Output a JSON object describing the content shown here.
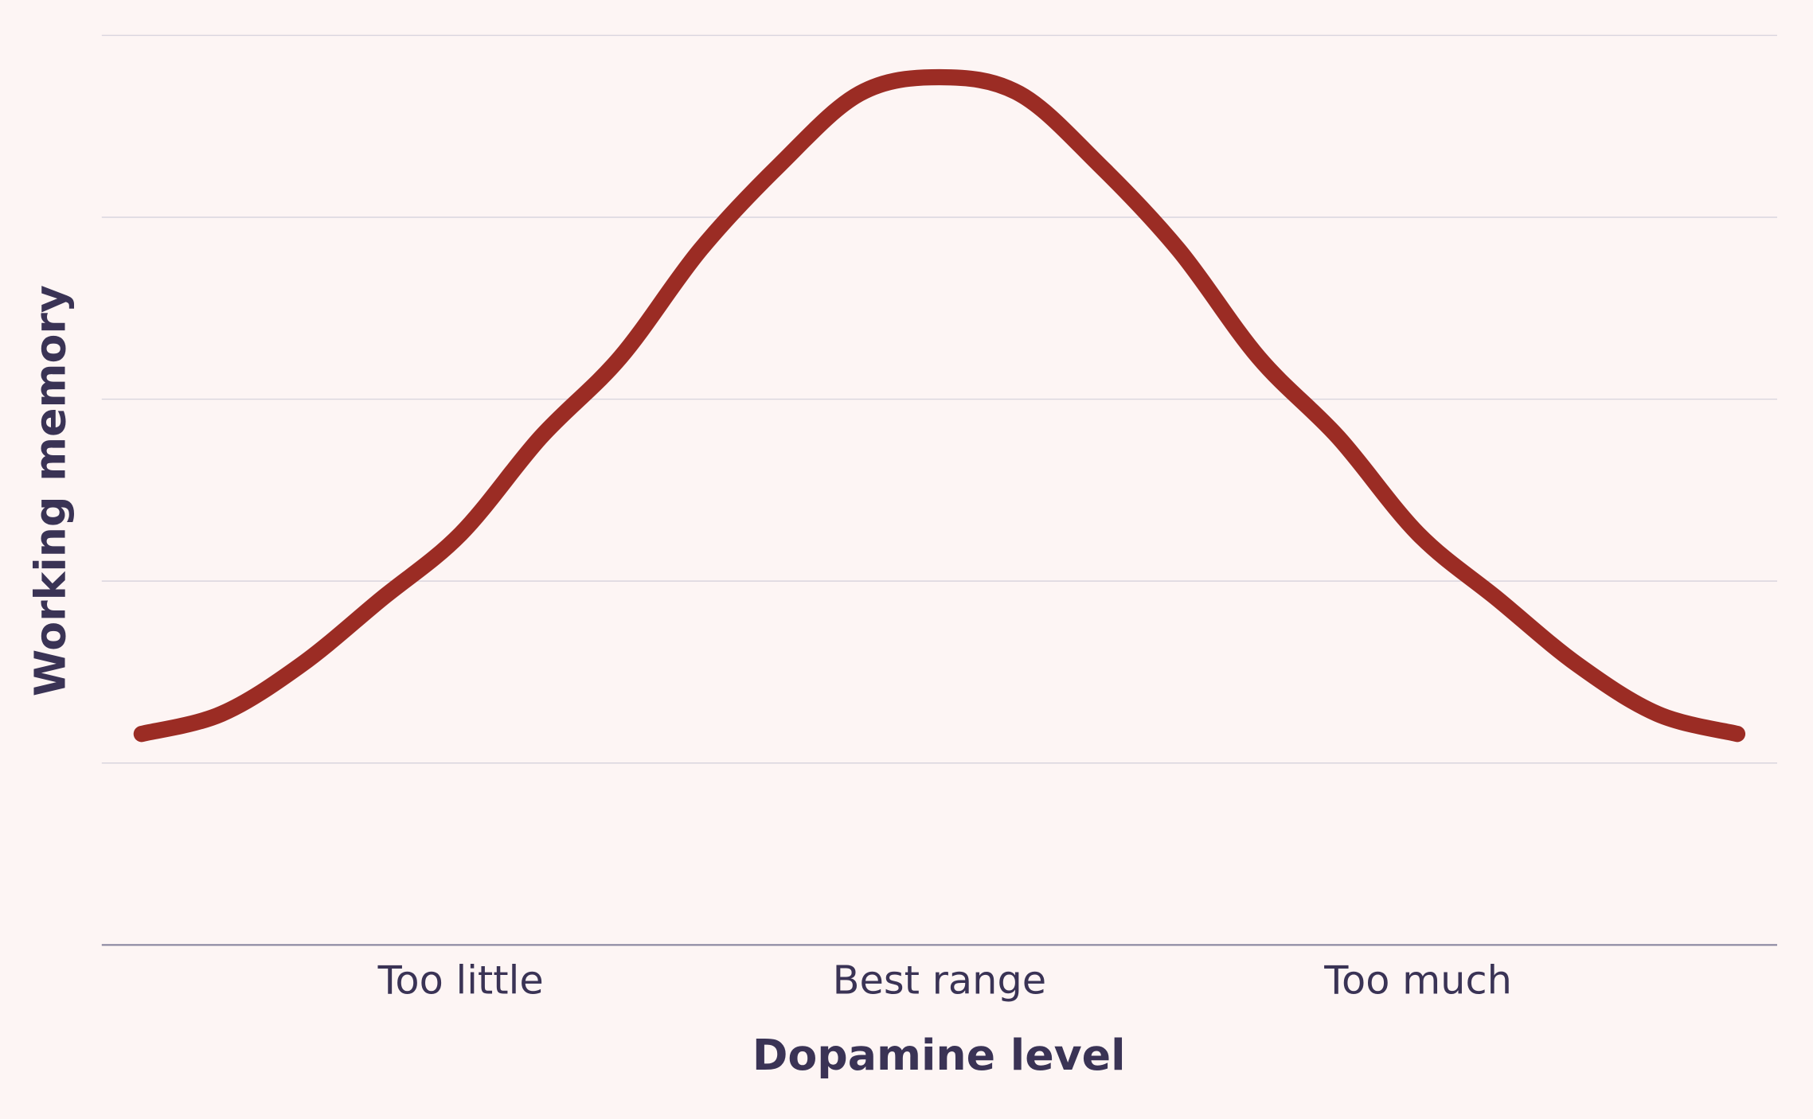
{
  "chart_data": {
    "type": "line",
    "x_label": "Dopamine level",
    "y_label": "Working memory",
    "x": [
      0,
      0.5,
      1,
      1.5,
      2,
      2.5,
      3,
      3.5,
      4,
      4.5,
      5,
      5.5,
      6,
      6.5,
      7,
      7.5,
      8,
      8.5,
      9,
      9.5,
      10
    ],
    "values": [
      1.16,
      1.27,
      1.54,
      1.9,
      2.26,
      2.79,
      3.23,
      3.82,
      4.29,
      4.68,
      4.77,
      4.68,
      4.29,
      3.82,
      3.23,
      2.79,
      2.26,
      1.9,
      1.54,
      1.27,
      1.16
    ],
    "color": "#9b2c24",
    "xlim": [
      -0.25,
      10.25
    ],
    "xticks": [
      {
        "value": 2,
        "label": "Too little"
      },
      {
        "value": 5,
        "label": "Best range"
      },
      {
        "value": 8,
        "label": "Too much"
      }
    ],
    "ylim": [
      0,
      5
    ],
    "yticks": [
      0,
      1,
      2,
      3,
      4,
      5
    ],
    "grid": true
  }
}
